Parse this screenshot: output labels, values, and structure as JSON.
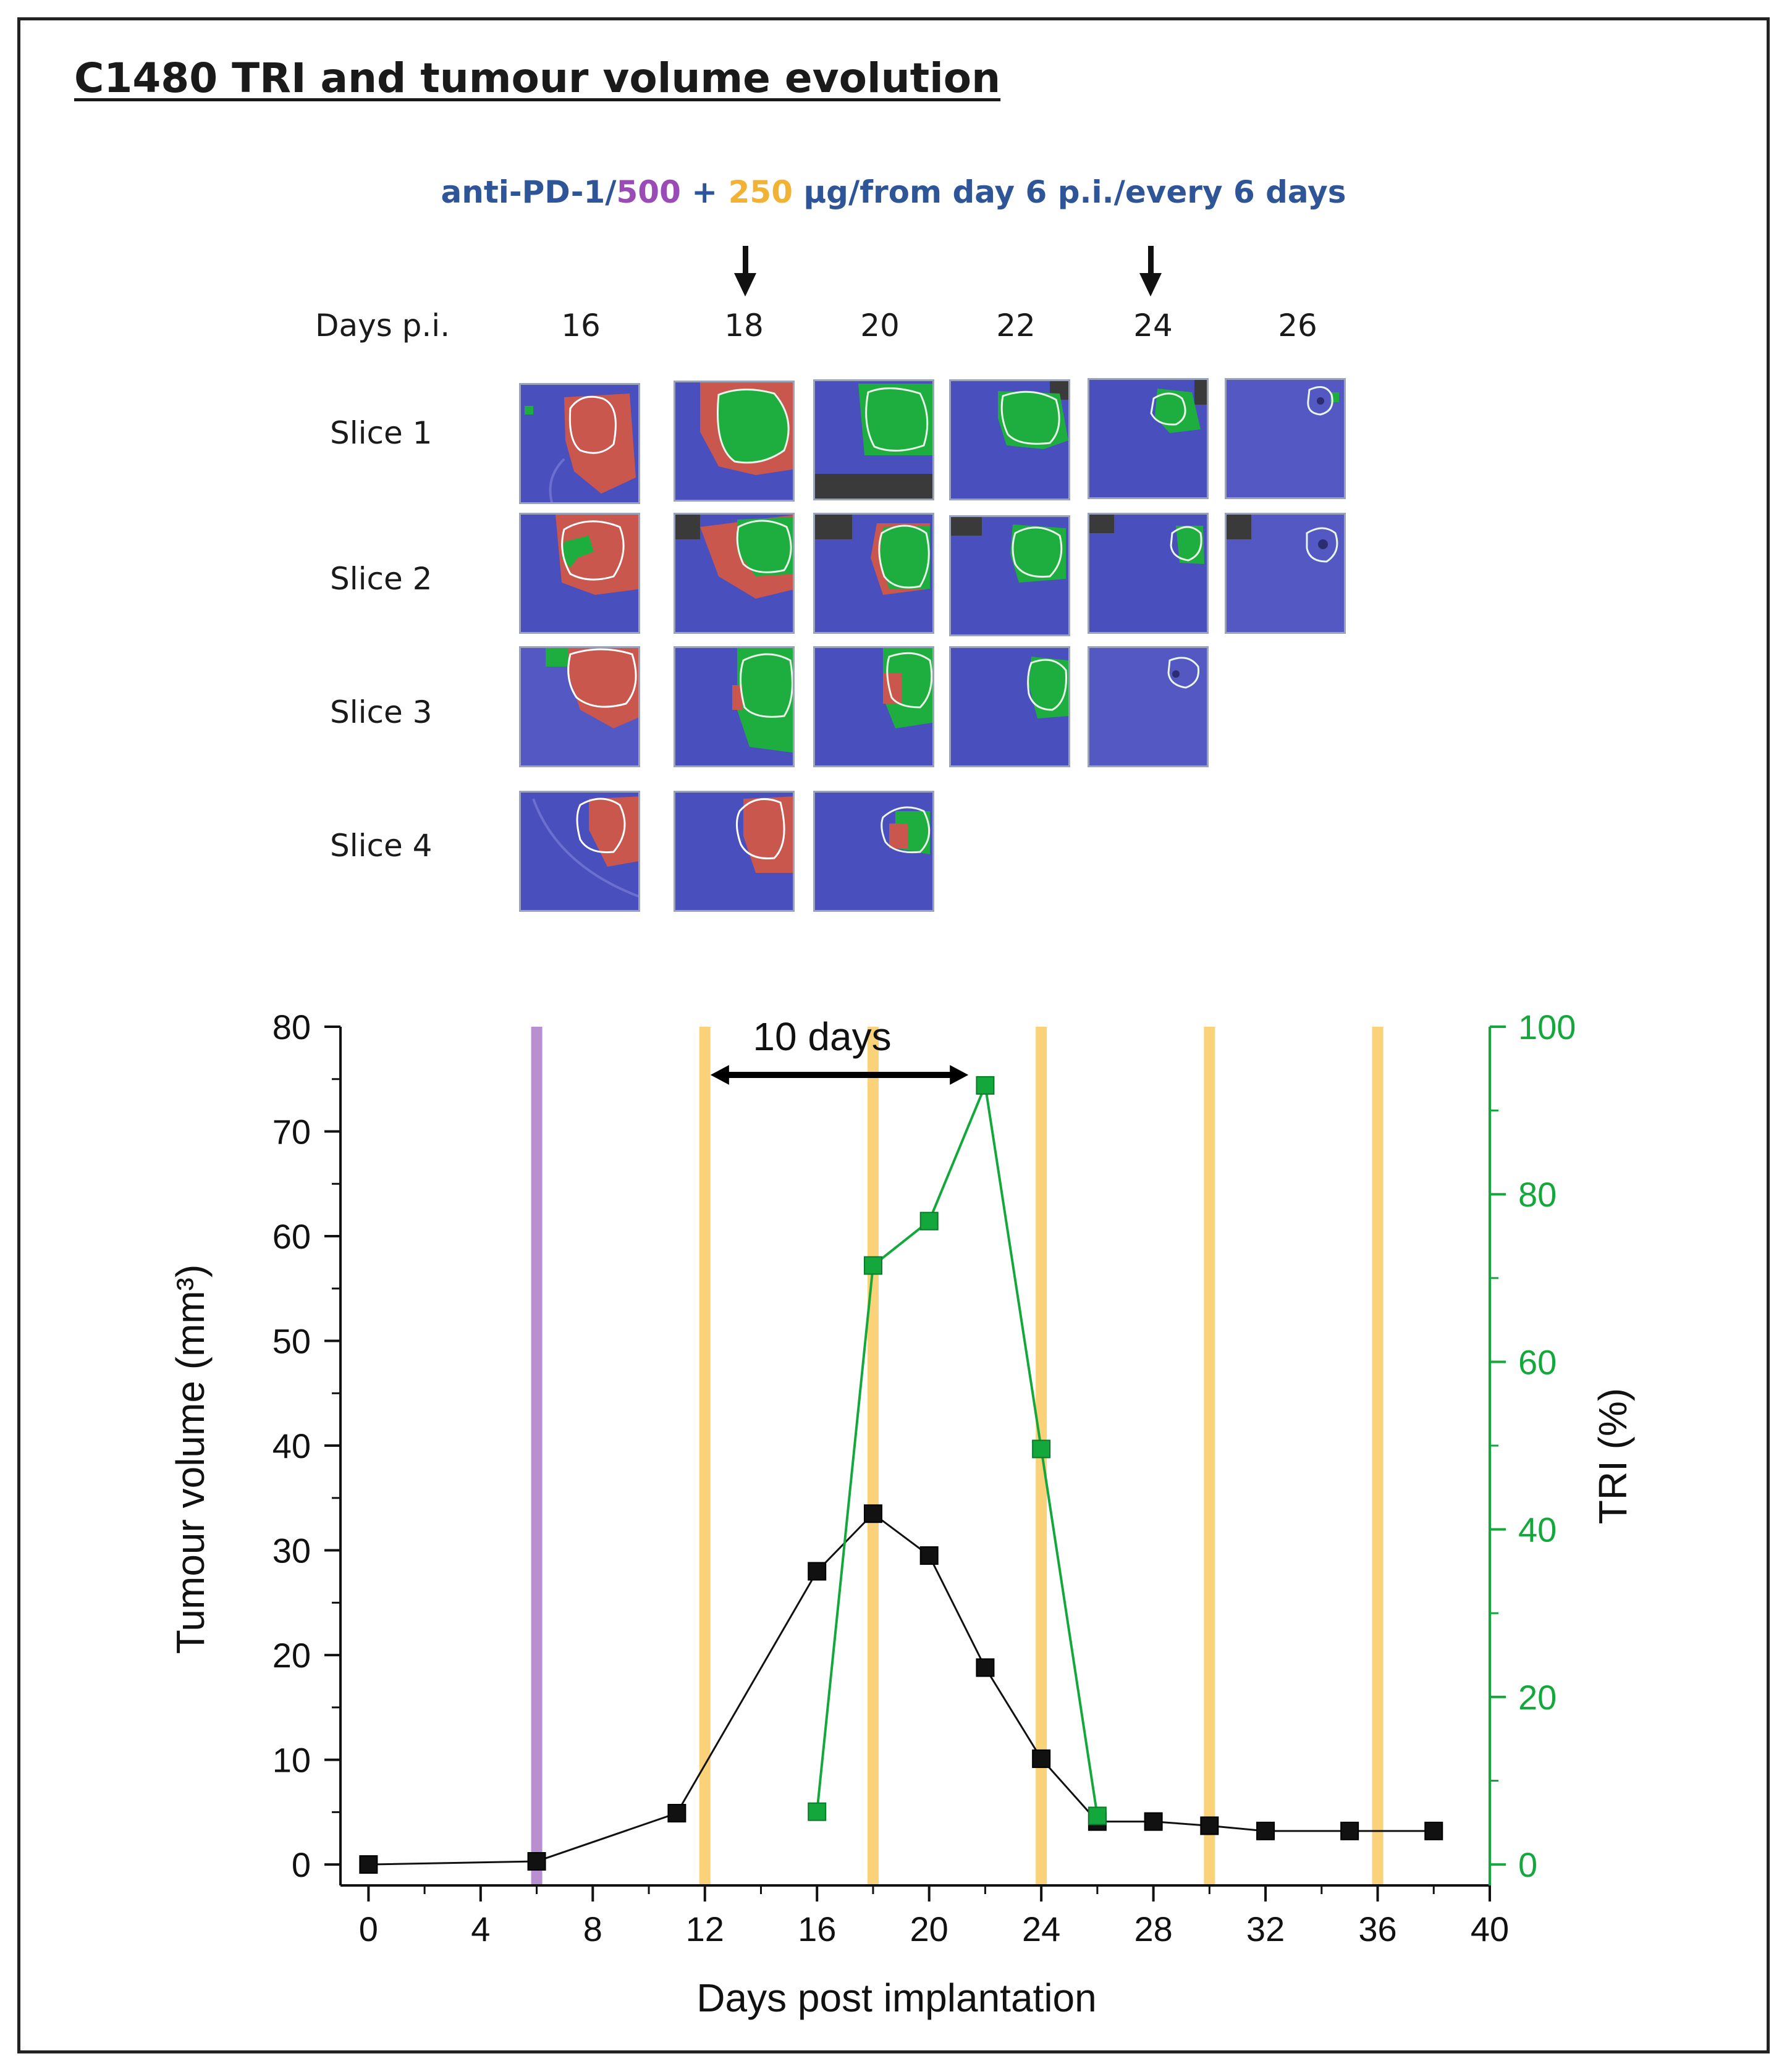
{
  "figure": {
    "title": "C1480 TRI and tumour volume evolution",
    "regimen": {
      "part1": "anti-PD-1/",
      "part2": "500",
      "part3": " + ",
      "part4": "250",
      "part5": " μg/from day 6 p.i./every 6 days"
    },
    "days_label": "Days p.i.",
    "days": [
      "16",
      "18",
      "20",
      "22",
      "24",
      "26"
    ],
    "slices": [
      "Slice 1",
      "Slice 2",
      "Slice 3",
      "Slice 4"
    ],
    "colors": {
      "purple": "#9b4bb5",
      "gold": "#f2b233",
      "blue_text": "#2e5597",
      "tri_green": "#14a83c",
      "volume_black": "#111111"
    }
  },
  "chart_data": {
    "type": "line",
    "xlabel": "Days post implantation",
    "ylabel": "Tumour volume (mm³)",
    "y2label": "TRI (%)",
    "xlim": [
      -1,
      40
    ],
    "ylim": [
      -2,
      80
    ],
    "y2lim": [
      -2.5,
      100
    ],
    "xticks": [
      0,
      4,
      8,
      12,
      16,
      20,
      24,
      28,
      32,
      36,
      40
    ],
    "yticks": [
      0,
      10,
      20,
      30,
      40,
      50,
      60,
      70,
      80
    ],
    "y2ticks": [
      0,
      20,
      40,
      60,
      80,
      100
    ],
    "annotation": "10 days",
    "annotation_range": [
      12.2,
      21.4
    ],
    "treatment_lines": [
      {
        "day": 6,
        "dose": "500",
        "color": "#b88fd0"
      },
      {
        "day": 12,
        "dose": "250",
        "color": "#f9d27a"
      },
      {
        "day": 18,
        "dose": "250",
        "color": "#f9d27a"
      },
      {
        "day": 24,
        "dose": "250",
        "color": "#f9d27a"
      },
      {
        "day": 30,
        "dose": "250",
        "color": "#f9d27a"
      },
      {
        "day": 36,
        "dose": "250",
        "color": "#f9d27a"
      }
    ],
    "series": [
      {
        "name": "Tumour volume",
        "axis": "left",
        "color": "#111111",
        "x": [
          0,
          6,
          11,
          16,
          18,
          20,
          22,
          24,
          26,
          28,
          30,
          32,
          35,
          38
        ],
        "y": [
          0,
          0.3,
          4.9,
          28.0,
          33.5,
          29.5,
          18.8,
          10.1,
          4.1,
          4.1,
          3.7,
          3.2,
          3.2,
          3.2
        ]
      },
      {
        "name": "TRI",
        "axis": "right",
        "color": "#14a83c",
        "x": [
          16,
          18,
          20,
          22,
          24,
          26
        ],
        "y": [
          6.3,
          71.5,
          76.8,
          93.0,
          49.6,
          5.8
        ]
      }
    ]
  }
}
